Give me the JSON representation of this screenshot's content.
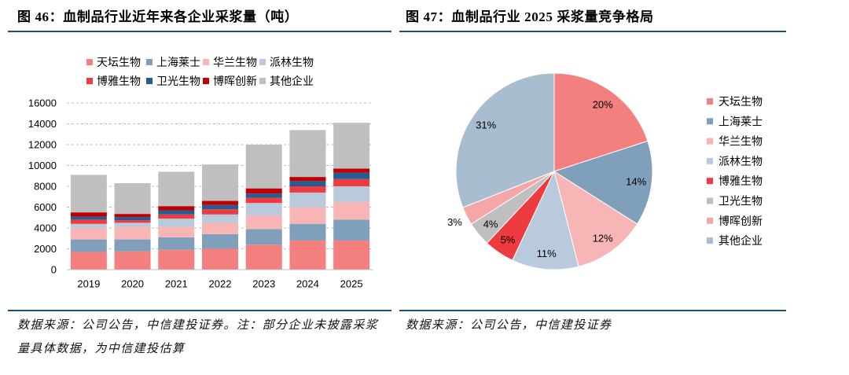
{
  "page": {
    "rule_color": "#1F4E79",
    "background": "#FFFFFF"
  },
  "notes": {
    "left_line1": "数据来源：公司公告，中信建投证券。注：部分企业未披露采浆",
    "left_line2": "量具体数据，为中信建投估算",
    "right": "数据来源：公司公告，中信建投证券"
  },
  "chart_data": [
    {
      "type": "bar",
      "stacked": true,
      "title": "图 46：血制品行业近年来各企业采浆量（吨）",
      "categories": [
        "2019",
        "2020",
        "2021",
        "2022",
        "2023",
        "2024",
        "2025"
      ],
      "series": [
        {
          "name": "天坛生物",
          "color": "#F47F7F",
          "values": [
            1700,
            1750,
            1900,
            2000,
            2400,
            2800,
            2800
          ]
        },
        {
          "name": "上海莱士",
          "color": "#7F9FBA",
          "values": [
            1200,
            1150,
            1200,
            1400,
            1500,
            1600,
            2000
          ]
        },
        {
          "name": "华兰生物",
          "color": "#F7B5B5",
          "values": [
            1100,
            1200,
            1000,
            1100,
            1300,
            1600,
            1700
          ]
        },
        {
          "name": "派林生物",
          "color": "#B8CADB",
          "values": [
            400,
            400,
            800,
            800,
            1200,
            1400,
            1500
          ]
        },
        {
          "name": "博雅生物",
          "color": "#EE3B3F",
          "values": [
            400,
            250,
            400,
            500,
            500,
            600,
            700
          ]
        },
        {
          "name": "卫光生物",
          "color": "#215E93",
          "values": [
            300,
            300,
            400,
            400,
            400,
            500,
            600
          ]
        },
        {
          "name": "博晖创新",
          "color": "#C00000",
          "values": [
            400,
            300,
            400,
            400,
            500,
            400,
            400
          ]
        },
        {
          "name": "其他企业",
          "color": "#BFBFBF",
          "values": [
            3600,
            2950,
            3300,
            3500,
            4200,
            4500,
            4400
          ]
        }
      ],
      "ylim": [
        0,
        16000
      ],
      "yticks": [
        0,
        2000,
        4000,
        6000,
        8000,
        10000,
        12000,
        14000,
        16000
      ],
      "grid": true,
      "legend": "top"
    },
    {
      "type": "pie",
      "title": "图 47：血制品行业 2025 采浆量竞争格局",
      "labels": [
        "天坛生物",
        "上海莱士",
        "华兰生物",
        "派林生物",
        "博雅生物",
        "卫光生物",
        "博晖创新",
        "其他企业"
      ],
      "values": [
        20,
        14,
        12,
        11,
        5,
        4,
        3,
        31
      ],
      "unit": "%",
      "colors": [
        "#F47F7F",
        "#7F9FBA",
        "#F7B5B5",
        "#B8CADB",
        "#EE3B3F",
        "#BFBFBF",
        "#F5A7A7",
        "#A9BDD0"
      ],
      "start": "top",
      "direction": "clockwise",
      "legend": "right"
    }
  ]
}
